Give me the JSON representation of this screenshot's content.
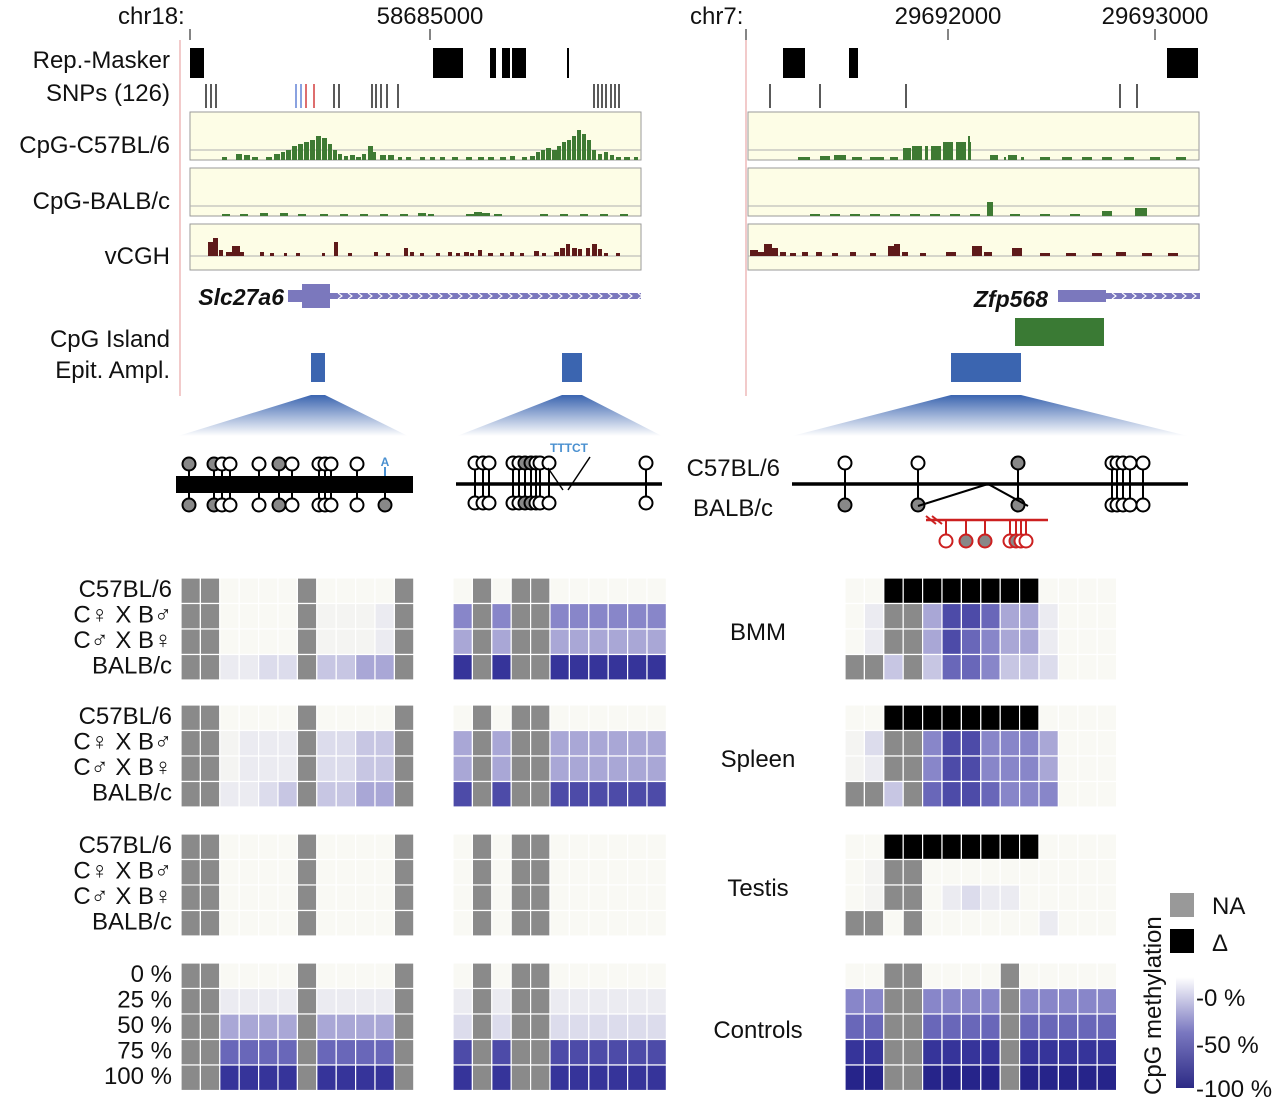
{
  "coords": {
    "left_chrom": "chr18:",
    "left_position": "58685000",
    "right_chrom": "chr7:",
    "right_pos_1": "29692000",
    "right_pos_2": "29693000"
  },
  "track_labels": {
    "repeat_masker": "Rep.-Masker",
    "snps": "SNPs (126)",
    "cpg_b6": "CpG-C57BL/6",
    "cpg_balb": "CpG-BALB/c",
    "vcgh": "vCGH",
    "cpg_island": "CpG Island",
    "epit_ampl": "Epit. Ampl."
  },
  "genes": {
    "left": "Slc27a6",
    "right": "Zfp568"
  },
  "snp_annotations": {
    "base": "A",
    "deletion": "TTTCT"
  },
  "strains": {
    "top": "C57BL/6",
    "bottom": "BALB/c"
  },
  "heatmap_blocks": [
    {
      "tissue": "BMM",
      "rows": [
        "C57BL/6",
        "C♀ X B♂",
        "C♂ X B♀",
        "BALB/c"
      ]
    },
    {
      "tissue": "Spleen",
      "rows": [
        "C57BL/6",
        "C♀ X B♂",
        "C♂ X B♀",
        "BALB/c"
      ]
    },
    {
      "tissue": "Testis",
      "rows": [
        "C57BL/6",
        "C♀ X B♂",
        "C♂ X B♀",
        "BALB/c"
      ]
    },
    {
      "tissue": "Controls",
      "rows": [
        "0 %",
        "25 %",
        "50 %",
        "75 %",
        "100 %"
      ]
    }
  ],
  "legend": {
    "na_label": "NA",
    "delta_label": "Δ",
    "scale_title": "CpG methylation",
    "scale_ticks": [
      "-0 %",
      "-50 %",
      "-100 %"
    ],
    "na_color": "#8a8a8a",
    "delta_color": "#000000",
    "scale_low_color": "#ffffff",
    "scale_high_color": "#2c2a85"
  },
  "colors": {
    "track_bg": "#fdfde6",
    "cpg_bar": "#3e7a33",
    "vcgh_bar": "#5e1a1a",
    "gene": "#7b78bd",
    "cpg_island": "#3a7a34",
    "amplicon": "#3b65b0",
    "snp_red": "#cc2020"
  }
}
